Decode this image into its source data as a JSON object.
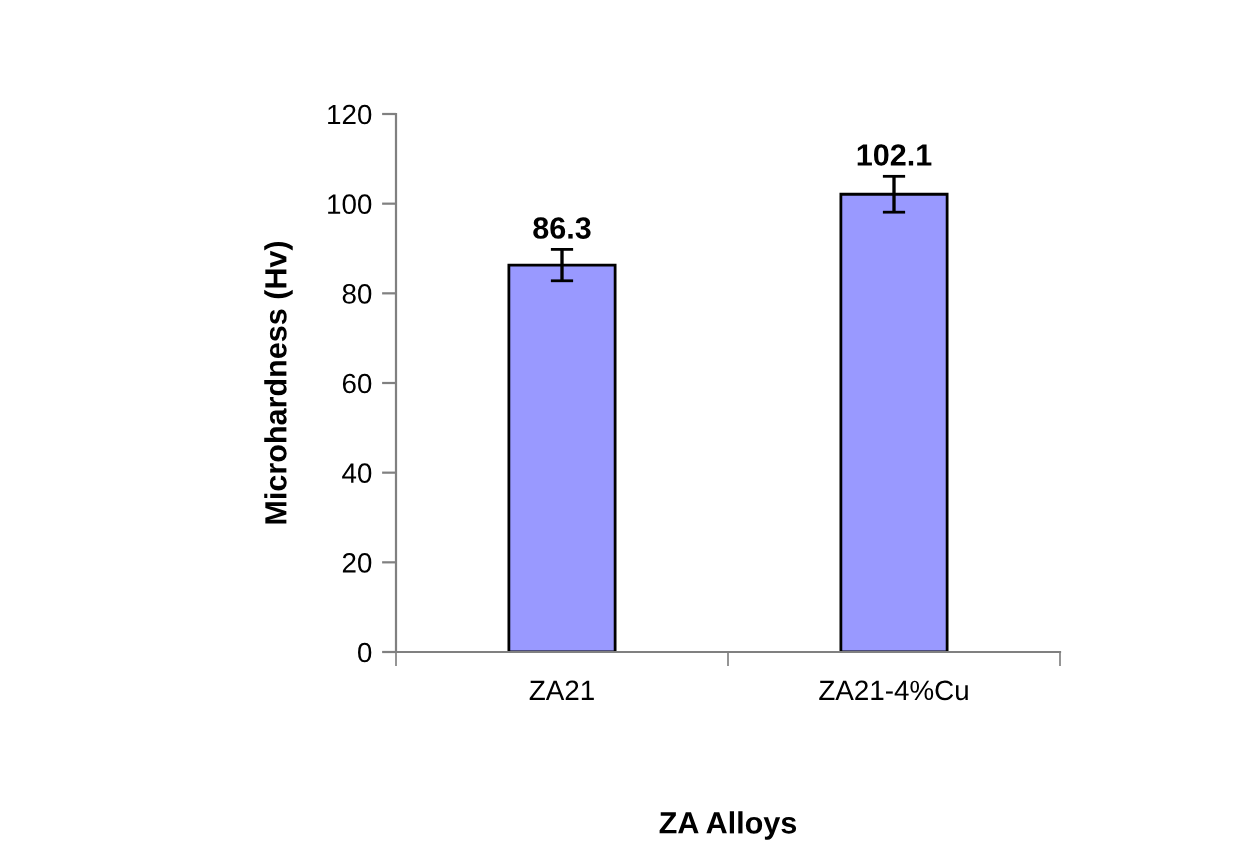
{
  "chart_data": {
    "type": "bar",
    "xlabel": "ZA Alloys",
    "ylabel": "Microhardness (Hv)",
    "categories": [
      "ZA21",
      "ZA21-4%Cu"
    ],
    "series": [
      {
        "color": "#9999ff",
        "values": [
          86.3,
          102.1
        ],
        "errors": [
          3.5,
          4
        ]
      }
    ],
    "ylim": [
      0,
      120
    ],
    "yticks": [
      0,
      20,
      40,
      60,
      80,
      100,
      120
    ],
    "grid": false,
    "legend": false,
    "data_labels": true
  }
}
